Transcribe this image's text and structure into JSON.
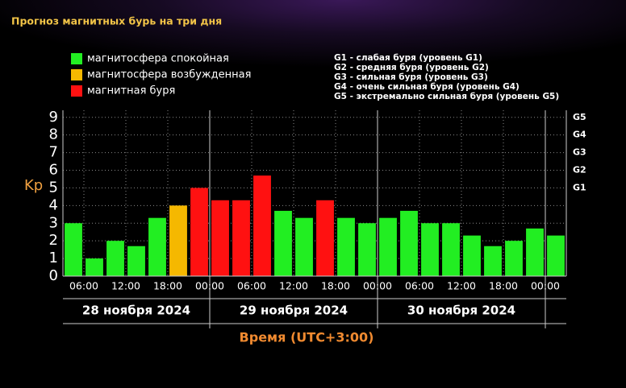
{
  "chart_data": {
    "type": "bar",
    "title": "Прогноз магнитных бурь на три дня",
    "ylabel": "Kp",
    "xlabel": "Время (UTC+3:00)",
    "x": [
      4.5,
      7.5,
      10.5,
      13.5,
      16.5,
      19.5,
      22.5,
      25.5,
      28.5,
      31.5,
      34.5,
      37.5,
      40.5,
      43.5,
      46.5,
      49.5,
      52.5,
      55.5,
      58.5,
      61.5,
      64.5,
      67.5,
      70.5,
      73.5
    ],
    "values": [
      3.0,
      1.0,
      2.0,
      1.7,
      3.3,
      4.0,
      5.0,
      4.3,
      4.3,
      5.7,
      3.7,
      3.3,
      4.3,
      3.3,
      3.0,
      3.3,
      3.7,
      3.0,
      3.0,
      2.3,
      1.7,
      2.0,
      2.7,
      2.3
    ],
    "colors": [
      "#22ee22",
      "#22ee22",
      "#22ee22",
      "#22ee22",
      "#22ee22",
      "#f5b800",
      "#ff1111",
      "#ff1111",
      "#ff1111",
      "#ff1111",
      "#22ee22",
      "#22ee22",
      "#ff1111",
      "#22ee22",
      "#22ee22",
      "#22ee22",
      "#22ee22",
      "#22ee22",
      "#22ee22",
      "#22ee22",
      "#22ee22",
      "#22ee22",
      "#22ee22",
      "#22ee22"
    ],
    "xlim": [
      3,
      75
    ],
    "xticks": [
      {
        "value": 6,
        "label": "06:00"
      },
      {
        "value": 12,
        "label": "12:00"
      },
      {
        "value": 18,
        "label": "18:00"
      },
      {
        "value": 24,
        "label": "00:00"
      },
      {
        "value": 30,
        "label": "06:00"
      },
      {
        "value": 36,
        "label": "12:00"
      },
      {
        "value": 42,
        "label": "18:00"
      },
      {
        "value": 48,
        "label": "00:00"
      },
      {
        "value": 54,
        "label": "06:00"
      },
      {
        "value": 60,
        "label": "12:00"
      },
      {
        "value": 66,
        "label": "18:00"
      },
      {
        "value": 72,
        "label": "00:00"
      }
    ],
    "ylim": [
      0,
      9.4
    ],
    "yticks": [
      0,
      1,
      2,
      3,
      4,
      5,
      6,
      7,
      8,
      9
    ],
    "y2ticks": [
      {
        "value": 5,
        "label": "G1"
      },
      {
        "value": 6,
        "label": "G2"
      },
      {
        "value": 7,
        "label": "G3"
      },
      {
        "value": 8,
        "label": "G4"
      },
      {
        "value": 9,
        "label": "G5"
      }
    ],
    "days": [
      "28 ноября 2024",
      "29 ноября 2024",
      "30 ноября 2024"
    ],
    "grid": true,
    "legend": [
      {
        "name": "магнитосфера спокойная",
        "color": "#22ee22"
      },
      {
        "name": "магнитосфера возбужденная",
        "color": "#f5b800"
      },
      {
        "name": "магнитная буря",
        "color": "#ff1111"
      }
    ],
    "storm_levels": [
      "G1 - слабая буря (уровень G1)",
      "G2 - средняя буря (уровень G2)",
      "G3 - сильная буря (уровень G3)",
      "G4 - очень сильная буря (уровень G4)",
      "G5 - экстремально сильная буря (уровень G5)"
    ]
  }
}
